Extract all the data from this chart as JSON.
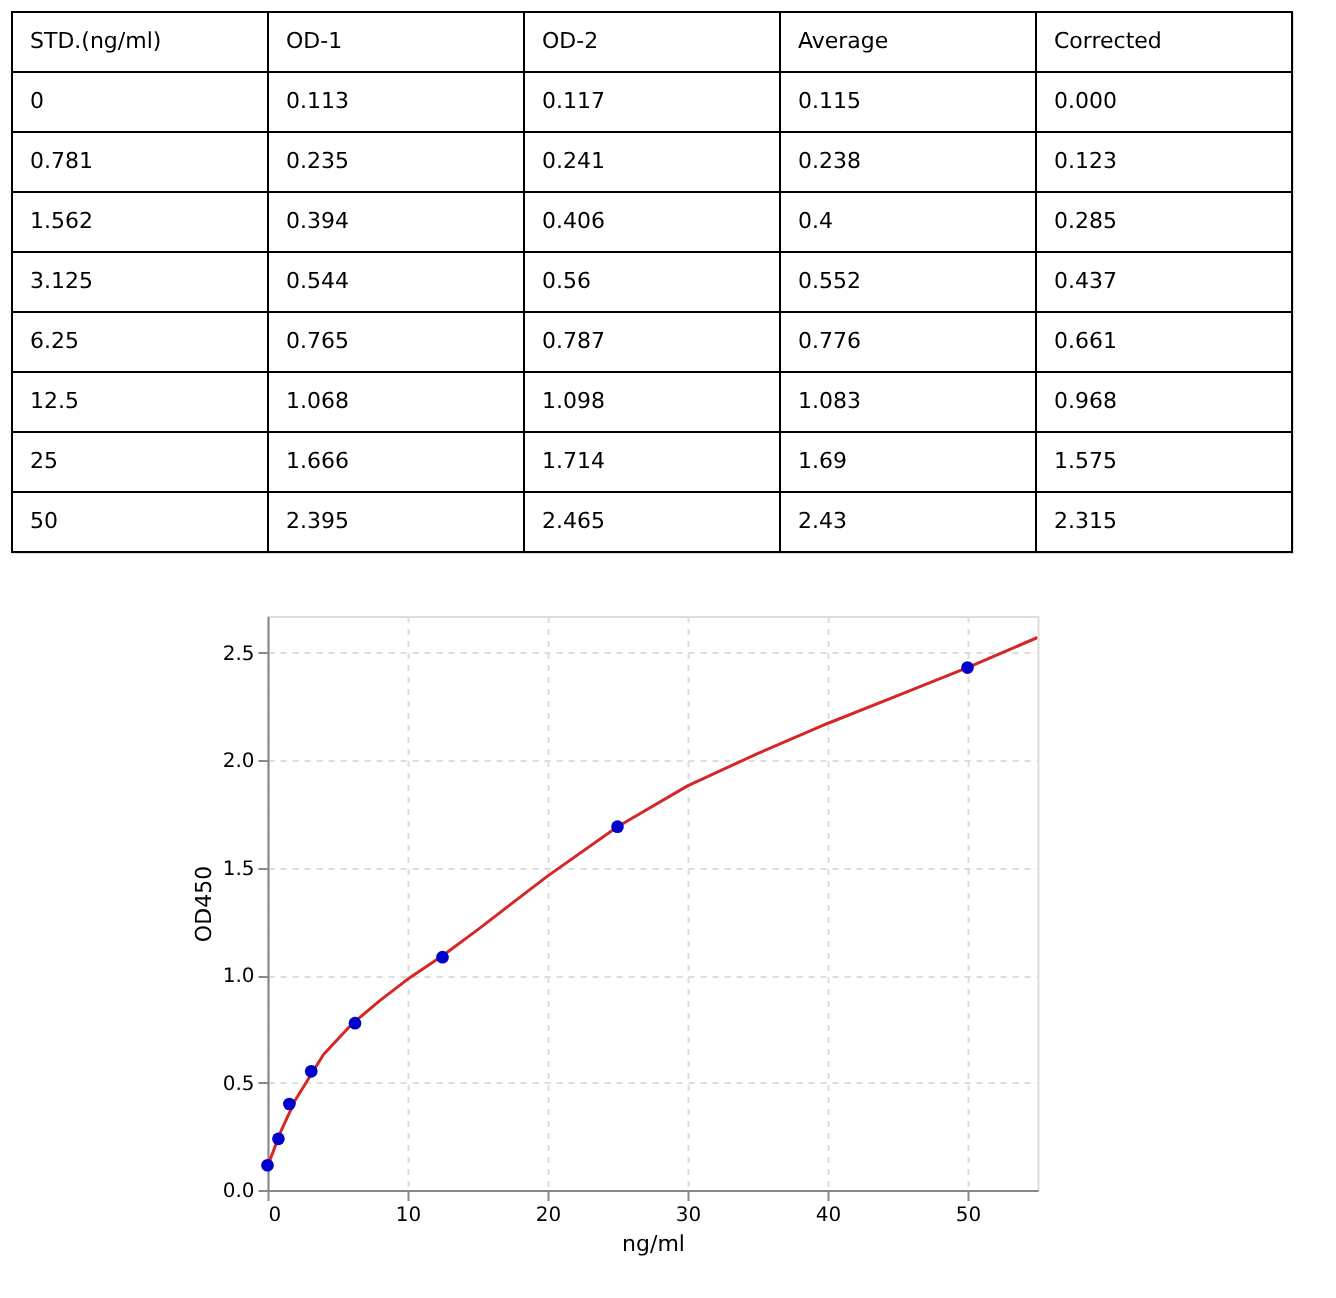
{
  "chart_data": [
    {
      "type": "other",
      "categories": [
        "STD.(ng/ml)",
        "OD-1",
        "OD-2",
        "Average",
        "Corrected"
      ],
      "annotations": [
        "0",
        "0.113",
        "0.117",
        "0.115",
        "0.000",
        "0.781",
        "0.235",
        "0.241",
        "0.238",
        "0.123",
        "1.562",
        "0.394",
        "0.406",
        "0.4",
        "0.285",
        "3.125",
        "0.544",
        "0.56",
        "0.552",
        "0.437",
        "6.25",
        "0.765",
        "0.787",
        "0.776",
        "0.661",
        "12.5",
        "1.068",
        "1.098",
        "1.083",
        "0.968",
        "25",
        "1.666",
        "1.714",
        "1.69",
        "1.575",
        "50",
        "2.395",
        "2.465",
        "2.43",
        "2.315"
      ]
    },
    {
      "type": "scatter",
      "xlabel": "ng/ml",
      "ylabel": "OD450",
      "xlim": [
        0,
        55
      ],
      "xticks": [
        0,
        10,
        20,
        30,
        40,
        50
      ],
      "ylim": [
        0,
        2.67
      ],
      "yticks": [
        {
          "value": 0,
          "label": "0.0"
        },
        0.5,
        {
          "value": 1,
          "label": "1.0"
        },
        1.5,
        {
          "value": 2,
          "label": "2.0"
        },
        2.5
      ],
      "grid": true,
      "series": [
        {
          "type": "line",
          "color": "#d62728",
          "x": [
            0,
            1,
            2,
            4,
            6,
            8,
            10,
            12.5,
            15,
            20,
            25,
            30,
            35,
            40,
            45,
            50,
            55
          ],
          "values": [
            0.11,
            0.28,
            0.42,
            0.63,
            0.77,
            0.88,
            0.98,
            1.09,
            1.21,
            1.46,
            1.69,
            1.88,
            2.03,
            2.17,
            2.3,
            2.43,
            2.57
          ]
        },
        {
          "type": "scatter",
          "marker": "circle",
          "color": "#0000cc",
          "x": [
            0,
            0.781,
            1.562,
            3.125,
            6.25,
            12.5,
            25,
            50
          ],
          "values": [
            0.115,
            0.238,
            0.4,
            0.552,
            0.776,
            1.083,
            1.69,
            2.43
          ]
        }
      ]
    }
  ]
}
